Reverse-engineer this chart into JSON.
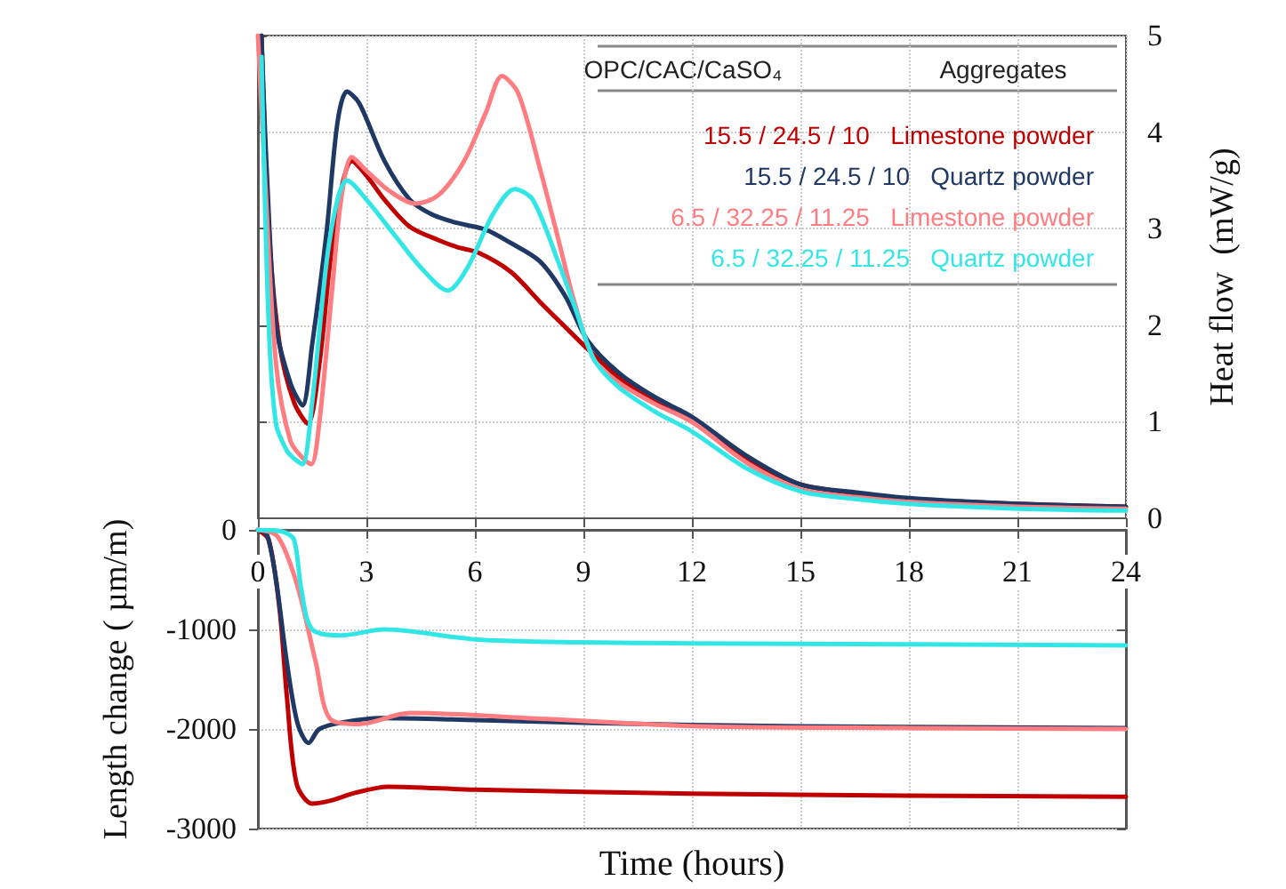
{
  "chart_data": [
    {
      "type": "line",
      "y2label": "Heat flow  (mW/g)",
      "legend_title": [
        "OPC/CAC/CaSO₄",
        "Aggregates"
      ],
      "legend": "top right",
      "grid": true,
      "tick_labels": "y",
      "marker": "none",
      "line_style": "solid",
      "xlim": [
        0,
        24
      ],
      "xticks": [
        0,
        3,
        6,
        9,
        12,
        15,
        18,
        21,
        24
      ],
      "y2lim": [
        0,
        5
      ],
      "y2ticks": [
        0,
        1,
        2,
        3,
        4,
        5
      ],
      "series": [
        {
          "name": "15.5 / 24.5 / 10   Limestone powder",
          "color": "#c00000",
          "axis": "y2",
          "x": [
            0.1,
            0.3,
            0.6,
            1.0,
            1.38,
            1.7,
            2.0,
            2.3,
            2.6,
            3.0,
            3.5,
            4.2,
            5.0,
            5.5,
            6.1,
            7.0,
            7.8,
            8.5,
            9.1,
            10,
            11,
            12,
            13.5,
            15,
            16.5,
            18,
            21,
            24
          ],
          "values": [
            5,
            3.0,
            1.8,
            1.2,
            0.98,
            1.6,
            2.66,
            3.4,
            3.7,
            3.55,
            3.3,
            3.02,
            2.88,
            2.81,
            2.75,
            2.55,
            2.24,
            1.98,
            1.76,
            1.45,
            1.2,
            1.0,
            0.62,
            0.35,
            0.26,
            0.2,
            0.15,
            0.12
          ]
        },
        {
          "name": "15.5 / 24.5 / 10   Quartz powder",
          "color": "#203864",
          "axis": "y2",
          "x": [
            0.1,
            0.25,
            0.5,
            0.9,
            1.23,
            1.5,
            1.9,
            2.2,
            2.46,
            2.8,
            3.5,
            4.2,
            4.8,
            5.5,
            6.3,
            7.0,
            7.8,
            8.5,
            9.1,
            10,
            11,
            12,
            13.5,
            15,
            16.5,
            18,
            21,
            24
          ],
          "values": [
            5,
            3.56,
            2.0,
            1.4,
            1.17,
            1.8,
            2.97,
            4.1,
            4.42,
            4.3,
            3.7,
            3.3,
            3.15,
            3.06,
            2.99,
            2.85,
            2.66,
            2.3,
            1.85,
            1.5,
            1.25,
            1.05,
            0.65,
            0.35,
            0.27,
            0.21,
            0.15,
            0.12
          ]
        },
        {
          "name": "6.5 / 32.25 / 11.25   Limestone powder",
          "color": "#ff7c80",
          "axis": "y2",
          "x": [
            0,
            0.2,
            0.5,
            0.9,
            1.3,
            1.48,
            1.7,
            2.05,
            2.3,
            2.6,
            3.0,
            3.6,
            4.35,
            5.0,
            5.7,
            6.3,
            6.75,
            7.2,
            7.8,
            8.3,
            8.75,
            9.3,
            10,
            11,
            12,
            13.5,
            15,
            16.5,
            18,
            21,
            24
          ],
          "values": [
            5,
            3.5,
            1.6,
            0.8,
            0.6,
            0.56,
            1.0,
            2.36,
            3.3,
            3.74,
            3.6,
            3.4,
            3.26,
            3.35,
            3.7,
            4.2,
            4.58,
            4.4,
            3.62,
            2.9,
            2.24,
            1.64,
            1.4,
            1.18,
            1.0,
            0.58,
            0.3,
            0.22,
            0.17,
            0.12,
            0.1
          ]
        },
        {
          "name": "6.5 / 32.25 / 11.25   Quartz powder",
          "color": "#33e6e6",
          "axis": "y2",
          "x": [
            0.1,
            0.3,
            0.5,
            0.8,
            1.0,
            1.23,
            1.5,
            1.9,
            2.2,
            2.46,
            3.0,
            3.85,
            4.5,
            5.25,
            5.8,
            6.5,
            7.1,
            7.6,
            8.3,
            8.8,
            9.3,
            10,
            11,
            12,
            13.5,
            15,
            16.5,
            18,
            21,
            24
          ],
          "values": [
            4.78,
            2.0,
            0.98,
            0.7,
            0.62,
            0.56,
            1.2,
            2.66,
            3.3,
            3.5,
            3.3,
            2.9,
            2.6,
            2.36,
            2.6,
            3.15,
            3.41,
            3.3,
            2.66,
            2.15,
            1.64,
            1.35,
            1.1,
            0.9,
            0.52,
            0.28,
            0.2,
            0.15,
            0.1,
            0.08
          ]
        }
      ]
    },
    {
      "type": "line",
      "xlabel": "Time (hours)",
      "ylabel": "Length change ( µm/m)",
      "grid": true,
      "marker": "none",
      "line_style": "solid",
      "xlim": [
        0,
        24
      ],
      "xticks": [
        0,
        3,
        6,
        9,
        12,
        15,
        18,
        21,
        24
      ],
      "ylim": [
        -3000,
        0
      ],
      "yticks": [
        -3000,
        -2000,
        -1000,
        0
      ],
      "series": [
        {
          "color": "#c00000",
          "x": [
            0,
            0.3,
            0.6,
            0.8,
            1.07,
            1.5,
            2.0,
            2.7,
            3.6,
            6,
            12,
            18,
            24
          ],
          "values": [
            0,
            -100,
            -800,
            -1670,
            -2550,
            -2750,
            -2720,
            -2640,
            -2580,
            -2610,
            -2650,
            -2670,
            -2680
          ]
        },
        {
          "color": "#203864",
          "x": [
            0,
            0.25,
            0.5,
            0.8,
            1.1,
            1.4,
            1.7,
            2.4,
            3.4,
            6,
            12,
            18,
            24
          ],
          "values": [
            0,
            -50,
            -500,
            -1330,
            -1950,
            -2140,
            -2000,
            -1930,
            -1890,
            -1910,
            -1960,
            -1980,
            -1990
          ]
        },
        {
          "color": "#ff7c80",
          "x": [
            0,
            0.5,
            0.8,
            1.16,
            1.6,
            2.0,
            2.8,
            4.2,
            8,
            12,
            18,
            24
          ],
          "values": [
            0,
            -50,
            -250,
            -650,
            -1330,
            -1900,
            -1950,
            -1840,
            -1900,
            -1970,
            -1990,
            -2000
          ]
        },
        {
          "color": "#33e6e6",
          "x": [
            0,
            0.7,
            1.0,
            1.2,
            1.5,
            2.3,
            3.5,
            6,
            8.9,
            12,
            18,
            24
          ],
          "values": [
            0,
            -20,
            -100,
            -600,
            -1000,
            -1060,
            -1000,
            -1100,
            -1130,
            -1140,
            -1150,
            -1160
          ]
        }
      ]
    }
  ]
}
